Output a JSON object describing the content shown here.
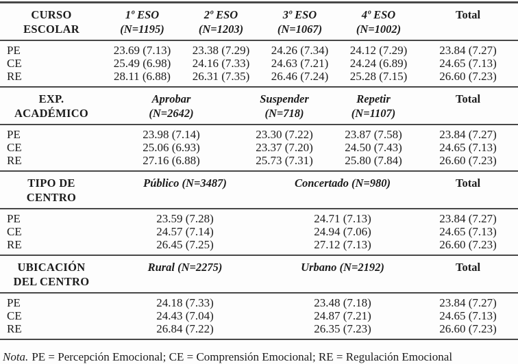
{
  "table": {
    "sections": [
      {
        "id": "curso-escolar",
        "header": {
          "line1": "CURSO",
          "line2": "ESCOLAR"
        },
        "columns": [
          {
            "line1": "1º ESO",
            "line2": "(N=1195)"
          },
          {
            "line1": "2º ESO",
            "line2": "(N=1203)"
          },
          {
            "line1": "3º ESO",
            "line2": "(N=1067)"
          },
          {
            "line1": "4º ESO",
            "line2": "(N=1002)"
          }
        ],
        "total_label": "Total",
        "rows": [
          {
            "label": "PE",
            "values": [
              "23.69 (7.13)",
              "23.38 (7.29)",
              "24.26 (7.34)",
              "24.12 (7.29)"
            ],
            "total": "23.84 (7.27)"
          },
          {
            "label": "CE",
            "values": [
              "25.49 (6.98)",
              "24.16 (7.33)",
              "24.63 (7.21)",
              "24.24 (6.89)"
            ],
            "total": "24.65 (7.13)"
          },
          {
            "label": "RE",
            "values": [
              "28.11 (6.88)",
              "26.31 (7.35)",
              "26.46 (7.24)",
              "25.28 (7.15)"
            ],
            "total": "26.60 (7.23)"
          }
        ]
      },
      {
        "id": "exp-academico",
        "header": {
          "line1": "EXP.",
          "line2": "ACADÉMICO"
        },
        "columns": [
          {
            "line1": "Aprobar",
            "line2": "(N=2642)"
          },
          {
            "line1": "Suspender",
            "line2": "(N=718)"
          },
          {
            "line1": "Repetir",
            "line2": "(N=1107)"
          }
        ],
        "total_label": "Total",
        "rows": [
          {
            "label": "PE",
            "values": [
              "23.98 (7.14)",
              "23.30 (7.22)",
              "23.87 (7.58)"
            ],
            "total": "23.84 (7.27)"
          },
          {
            "label": "CE",
            "values": [
              "25.06 (6.93)",
              "23.37 (7.20)",
              "24.50 (7.43)"
            ],
            "total": "24.65 (7.13)"
          },
          {
            "label": "RE",
            "values": [
              "27.16 (6.88)",
              "25.73 (7.31)",
              "25.80 (7.84)"
            ],
            "total": "26.60 (7.23)"
          }
        ]
      },
      {
        "id": "tipo-de-centro",
        "header": {
          "line1": "TIPO DE",
          "line2": "CENTRO"
        },
        "columns": [
          {
            "line1": "Público (N=3487)"
          },
          {
            "line1": "Concertado (N=980)"
          }
        ],
        "total_label": "Total",
        "rows": [
          {
            "label": "PE",
            "values": [
              "23.59 (7.28)",
              "24.71 (7.13)"
            ],
            "total": "23.84 (7.27)"
          },
          {
            "label": "CE",
            "values": [
              "24.57 (7.14)",
              "24.94 (7.06)"
            ],
            "total": "24.65 (7.13)"
          },
          {
            "label": "RE",
            "values": [
              "26.45 (7.25)",
              "27.12 (7.13)"
            ],
            "total": "26.60 (7.23)"
          }
        ]
      },
      {
        "id": "ubicacion-del-centro",
        "header": {
          "line1": "UBICACIÓN",
          "line2": "DEL CENTRO"
        },
        "columns": [
          {
            "line1": "Rural (N=2275)"
          },
          {
            "line1": "Urbano (N=2192)"
          }
        ],
        "total_label": "Total",
        "rows": [
          {
            "label": "PE",
            "values": [
              "24.18 (7.33)",
              "23.48 (7.18)"
            ],
            "total": "23.84 (7.27)"
          },
          {
            "label": "CE",
            "values": [
              "24.43 (7.04)",
              "24.87 (7.21)"
            ],
            "total": "24.65 (7.13)"
          },
          {
            "label": "RE",
            "values": [
              "26.84 (7.22)",
              "26.35 (7.23)"
            ],
            "total": "26.60 (7.23)"
          }
        ]
      }
    ],
    "note": {
      "prefix": "Nota.",
      "text": "PE = Percepción Emocional; CE = Comprensión Emocional; RE = Regulación Emocional"
    }
  },
  "colors": {
    "rule": "#474747",
    "text": "#1b1b1b",
    "background": "#fdfdfd"
  }
}
